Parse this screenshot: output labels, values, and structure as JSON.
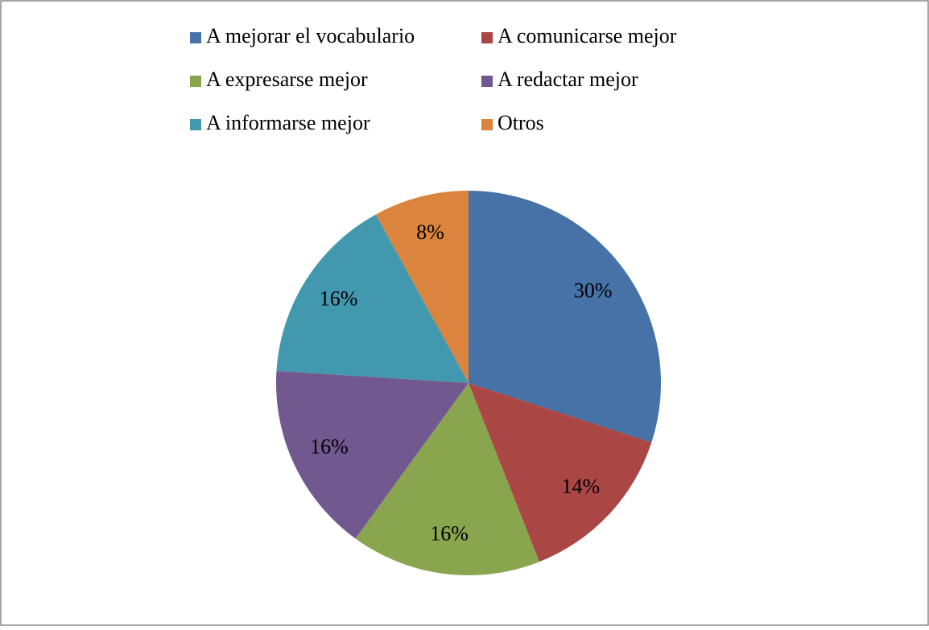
{
  "chart_data": {
    "type": "pie",
    "categories": [
      "A mejorar el vocabulario",
      "A comunicarse mejor",
      "A expresarse mejor",
      "A redactar mejor",
      "A informarse mejor",
      "Otros"
    ],
    "values": [
      30,
      14,
      16,
      16,
      16,
      8
    ],
    "value_labels": [
      "30%",
      "14%",
      "16%",
      "16%",
      "16%",
      "8%"
    ],
    "colors": [
      "#4672a8",
      "#aa4644",
      "#89a54e",
      "#71588f",
      "#4198af",
      "#db843d"
    ],
    "legend": "top"
  }
}
